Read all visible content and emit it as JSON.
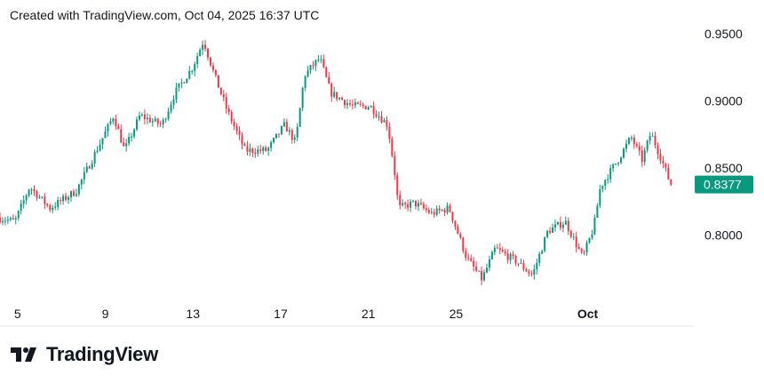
{
  "header": "Created with TradingView.com, Oct 04, 2025 16:37 UTC",
  "logo": "TradingView",
  "chart_data": {
    "type": "candlestick",
    "title": "",
    "x_ticks": [
      {
        "day": 0,
        "label": "5"
      },
      {
        "day": 4,
        "label": "9"
      },
      {
        "day": 8,
        "label": "13"
      },
      {
        "day": 12,
        "label": "17"
      },
      {
        "day": 16,
        "label": "21"
      },
      {
        "day": 20,
        "label": "25"
      },
      {
        "day": 26,
        "label": "Oct"
      }
    ],
    "y_ticks": [
      {
        "value": 0.95,
        "label": "0.9500"
      },
      {
        "value": 0.9,
        "label": "0.9000"
      },
      {
        "value": 0.85,
        "label": "0.8500"
      },
      {
        "value": 0.8,
        "label": "0.8000"
      }
    ],
    "ylim": [
      0.75,
      0.9553
    ],
    "xlim_days": [
      -0.8,
      30.8
    ],
    "last_price": {
      "value": 0.8377,
      "label": "0.8377"
    },
    "colors": {
      "up": "#089981",
      "down": "#f23645",
      "label_bg": "#089981"
    },
    "price_path": [
      [
        -0.8,
        0.813
      ],
      [
        0,
        0.81
      ],
      [
        0.67,
        0.836
      ],
      [
        1.6,
        0.82
      ],
      [
        2.8,
        0.833
      ],
      [
        3.6,
        0.859
      ],
      [
        4.5,
        0.889
      ],
      [
        5,
        0.863
      ],
      [
        5.7,
        0.889
      ],
      [
        6.7,
        0.882
      ],
      [
        7.3,
        0.906
      ],
      [
        8.1,
        0.925
      ],
      [
        8.6,
        0.945
      ],
      [
        9.1,
        0.919
      ],
      [
        9.7,
        0.892
      ],
      [
        10.5,
        0.863
      ],
      [
        11.5,
        0.863
      ],
      [
        12.3,
        0.882
      ],
      [
        12.8,
        0.869
      ],
      [
        13.2,
        0.919
      ],
      [
        13.9,
        0.932
      ],
      [
        14.4,
        0.906
      ],
      [
        15.4,
        0.896
      ],
      [
        16.2,
        0.896
      ],
      [
        17,
        0.882
      ],
      [
        17.3,
        0.849
      ],
      [
        17.5,
        0.82
      ],
      [
        18.2,
        0.824
      ],
      [
        19,
        0.816
      ],
      [
        19.8,
        0.82
      ],
      [
        20.6,
        0.783
      ],
      [
        21.3,
        0.767
      ],
      [
        21.9,
        0.79
      ],
      [
        22.9,
        0.78
      ],
      [
        23.6,
        0.77
      ],
      [
        24.3,
        0.803
      ],
      [
        25.1,
        0.81
      ],
      [
        25.9,
        0.783
      ],
      [
        26.4,
        0.806
      ],
      [
        26.7,
        0.836
      ],
      [
        27.5,
        0.856
      ],
      [
        28.1,
        0.873
      ],
      [
        28.6,
        0.856
      ],
      [
        29,
        0.876
      ],
      [
        29.5,
        0.856
      ],
      [
        29.9,
        0.8377
      ]
    ]
  }
}
